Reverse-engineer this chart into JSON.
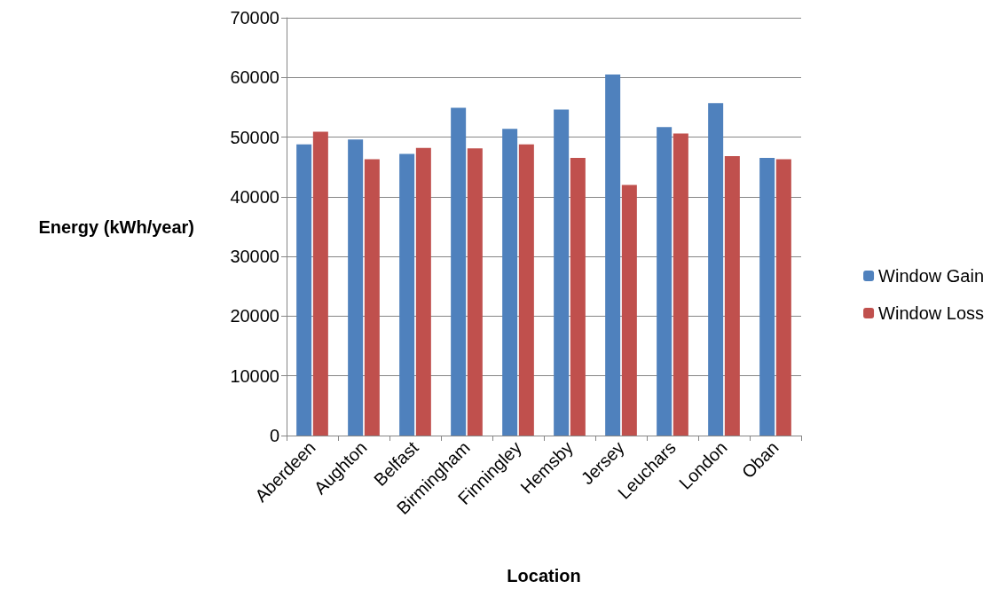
{
  "chart_data": {
    "type": "bar",
    "xlabel": "Location",
    "ylabel": "Energy (kWh/year)",
    "categories": [
      "Aberdeen",
      "Aughton",
      "Belfast",
      "Birmingham",
      "Finningley",
      "Hemsby",
      "Jersey",
      "Leuchars",
      "London",
      "Oban"
    ],
    "series": [
      {
        "name": "Window Gain",
        "color": "#4f81bd",
        "values": [
          48800,
          49600,
          47200,
          54900,
          51400,
          54600,
          60500,
          51700,
          55700,
          46500
        ]
      },
      {
        "name": "Window Loss",
        "color": "#c0504d",
        "values": [
          50900,
          46300,
          48200,
          48100,
          48800,
          46500,
          42000,
          50600,
          46800,
          46300
        ]
      }
    ],
    "ylim": [
      0,
      70000
    ],
    "yticks": [
      0,
      10000,
      20000,
      30000,
      40000,
      50000,
      60000,
      70000
    ],
    "grid": "y",
    "legend": "right"
  }
}
